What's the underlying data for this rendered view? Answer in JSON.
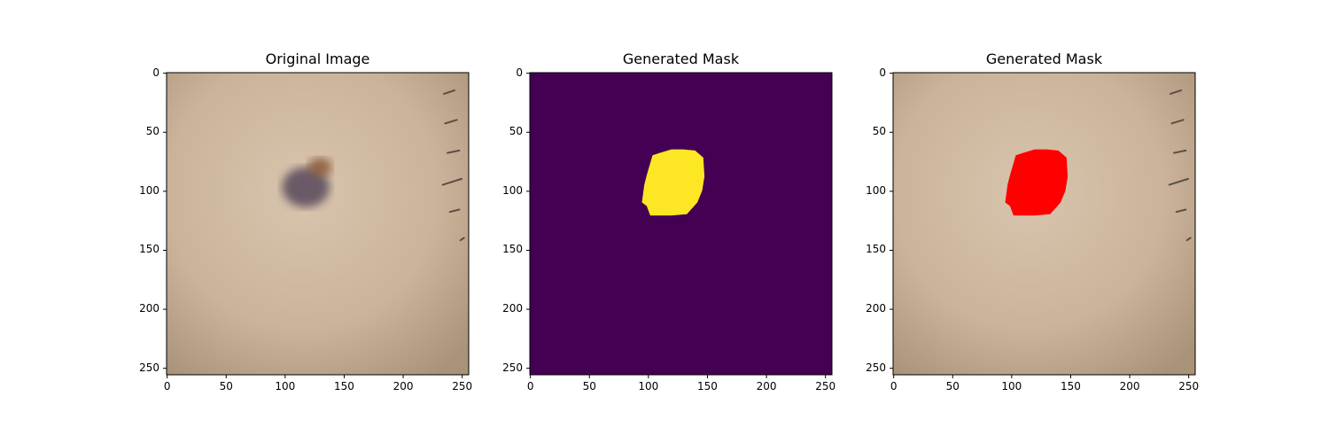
{
  "figure": {
    "panels": [
      {
        "title": "Original Image",
        "kind": "photo"
      },
      {
        "title": "Generated Mask",
        "kind": "mask"
      },
      {
        "title": "Generated Mask",
        "kind": "overlay"
      }
    ],
    "ticks": [
      0,
      50,
      100,
      150,
      200,
      250
    ],
    "tick_labels": [
      "0",
      "50",
      "100",
      "150",
      "200",
      "250"
    ],
    "image_size": 256
  },
  "lesion_polygon": [
    [
      104,
      70
    ],
    [
      110,
      68
    ],
    [
      120,
      65
    ],
    [
      130,
      65
    ],
    [
      140,
      66
    ],
    [
      147,
      72
    ],
    [
      148,
      88
    ],
    [
      146,
      100
    ],
    [
      142,
      110
    ],
    [
      133,
      120
    ],
    [
      120,
      121
    ],
    [
      102,
      121
    ],
    [
      99,
      113
    ],
    [
      95,
      110
    ],
    [
      97,
      95
    ],
    [
      99,
      87
    ]
  ],
  "colors": {
    "skin": "#cbb39a",
    "mask_background": "#440154",
    "mask_foreground": "#fde725",
    "overlay": "#ff0000",
    "lesion_dark": "#5e5060",
    "lesion_brown": "#8a5a38"
  }
}
